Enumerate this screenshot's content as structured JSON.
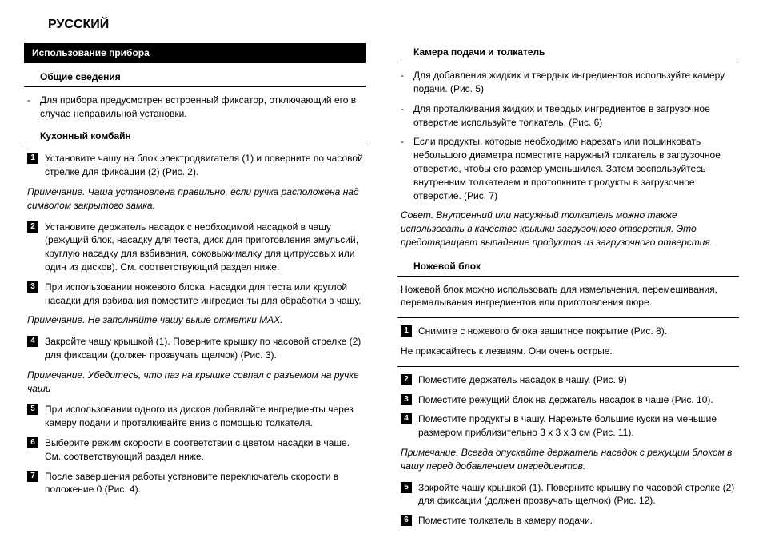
{
  "title": "РУССКИЙ",
  "left": {
    "sectionHeader": "Использование прибора",
    "subGeneral": "Общие сведения",
    "generalBullet": "Для прибора предусмотрен встроенный фиксатор, отключающий его в случае неправильной установки.",
    "subProcessor": "Кухонный комбайн",
    "step1": "Установите чашу на блок электродвигателя (1) и поверните по часовой стрелке для фиксации (2) (Рис. 2).",
    "note1": "Примечание. Чаша установлена правильно, если ручка расположена над символом закрытого замка.",
    "step2": "Установите держатель насадок с необходимой насадкой в чашу (режущий блок, насадку для теста, диск для приготовления эмульсий, круглую насадку для взбивания, соковыжималку для цитрусовых или один из дисков). См. соответствующий раздел ниже.",
    "step3": "При использовании ножевого блока, насадки для теста или круглой насадки для взбивания поместите ингредиенты для обработки в чашу.",
    "note2": "Примечание. Не заполняйте чашу выше отметки MAX.",
    "step4": "Закройте чашу крышкой (1). Поверните крышку по часовой стрелке (2) для фиксации (должен прозвучать щелчок) (Рис. 3).",
    "note3": "Примечание. Убедитесь, что паз на крышке совпал с разъемом на ручке чаши",
    "step5": "При использовании одного из дисков добавляйте ингредиенты через камеру подачи и проталкивайте вниз с помощью толкателя.",
    "step6": "Выберите режим скорости в соответствии с цветом насадки в чаше. См. соответствующий раздел ниже.",
    "step7": "После завершения работы установите переключатель скорости в положение 0 (Рис. 4)."
  },
  "right": {
    "subFeed": "Камера подачи и толкатель",
    "feed1": "Для добавления жидких и твердых ингредиентов используйте камеру подачи.  (Рис. 5)",
    "feed2": "Для проталкивания жидких и твердых ингредиентов в загрузочное отверстие используйте толкатель.  (Рис. 6)",
    "feed3": "Если продукты, которые необходимо нарезать или пошинковать небольшого диаметра поместите наружный толкатель в загрузочное отверстие, чтобы его размер уменьшился. Затем воспользуйтесь внутренним толкателем и протолкните продукты в загрузочное отверстие.  (Рис. 7)",
    "tip": "Совет. Внутренний или наружный толкатель можно также использовать в качестве крышки загрузочного отверстия. Это предотвращает выпадение продуктов из загрузочного отверстия.",
    "subBlade": "Ножевой блок",
    "bladeIntro": "Ножевой блок можно использовать для измельчения, перемешивания, перемалывания ингредиентов или приготовления пюре.",
    "bstep1": "Снимите с ножевого блока защитное покрытие (Рис. 8).",
    "bwarn": "Не прикасайтесь к лезвиям. Они очень острые.",
    "bstep2": "Поместите держатель насадок в чашу.  (Рис. 9)",
    "bstep3": "Поместите режущий блок на держатель насадок в чаше (Рис. 10).",
    "bstep4": "Поместите продукты в чашу. Нарежьте большие куски на меньшие размером приблизительно 3 x 3 x 3 см (Рис. 11).",
    "bnote": "Примечание. Всегда опускайте держатель насадок с режущим блоком в чашу перед добавлением ингредиентов.",
    "bstep5": "Закройте чашу крышкой (1). Поверните крышку по часовой стрелке (2) для фиксации (должен прозвучать щелчок) (Рис. 12).",
    "bstep6": "Поместите толкатель в камеру подачи."
  }
}
